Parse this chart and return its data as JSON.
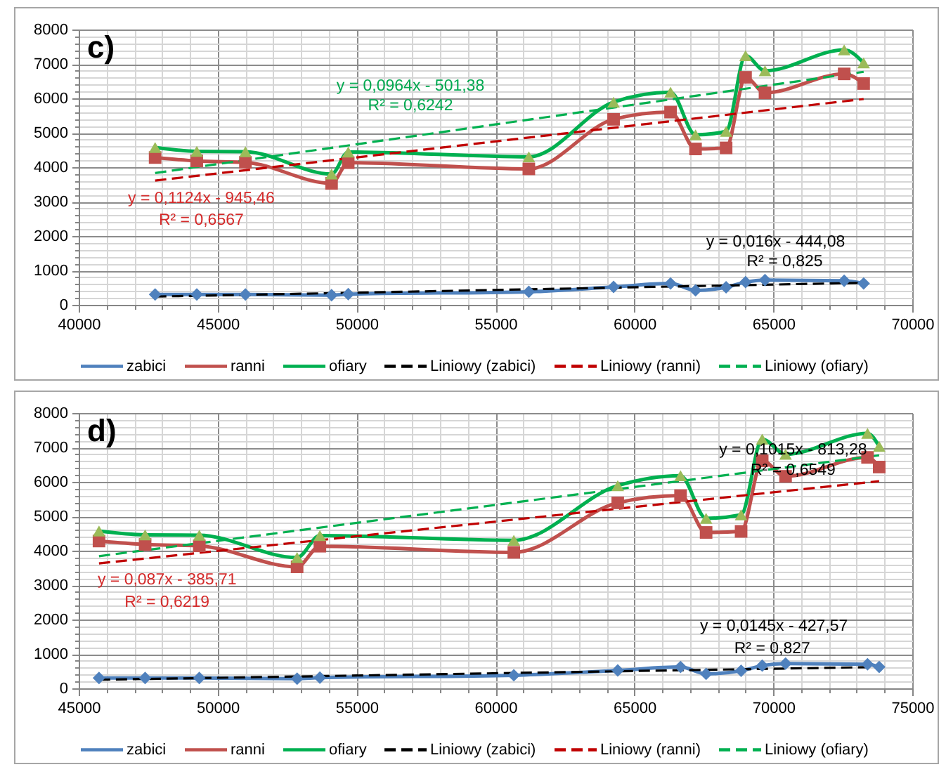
{
  "chart_data": [
    {
      "type": "line",
      "title": "c)",
      "grid": true,
      "legend": "bottom",
      "line_style": "solid",
      "x": [
        42750,
        44250,
        46000,
        49100,
        49700,
        56200,
        59250,
        61300,
        62200,
        63300,
        64000,
        64700,
        67550,
        68250
      ],
      "xlim": [
        40000,
        70000
      ],
      "xticks": [
        40000,
        {
          "value": 41000,
          "label": null
        },
        {
          "value": 42000,
          "label": null
        },
        {
          "value": 43000,
          "label": null
        },
        {
          "value": 44000,
          "label": null
        },
        45000,
        {
          "value": 46000,
          "label": null
        },
        {
          "value": 47000,
          "label": null
        },
        {
          "value": 48000,
          "label": null
        },
        {
          "value": 49000,
          "label": null
        },
        50000,
        {
          "value": 51000,
          "label": null
        },
        {
          "value": 52000,
          "label": null
        },
        {
          "value": 53000,
          "label": null
        },
        {
          "value": 54000,
          "label": null
        },
        55000,
        {
          "value": 56000,
          "label": null
        },
        {
          "value": 57000,
          "label": null
        },
        {
          "value": 58000,
          "label": null
        },
        {
          "value": 59000,
          "label": null
        },
        60000,
        {
          "value": 61000,
          "label": null
        },
        {
          "value": 62000,
          "label": null
        },
        {
          "value": 63000,
          "label": null
        },
        {
          "value": 64000,
          "label": null
        },
        65000,
        {
          "value": 66000,
          "label": null
        },
        {
          "value": 67000,
          "label": null
        },
        {
          "value": 68000,
          "label": null
        },
        {
          "value": 69000,
          "label": null
        },
        70000
      ],
      "ylim": [
        0,
        8000
      ],
      "yticks": [
        0,
        {
          "value": 200,
          "label": null
        },
        {
          "value": 400,
          "label": null
        },
        {
          "value": 600,
          "label": null
        },
        {
          "value": 800,
          "label": null
        },
        1000,
        {
          "value": 1200,
          "label": null
        },
        {
          "value": 1400,
          "label": null
        },
        {
          "value": 1600,
          "label": null
        },
        {
          "value": 1800,
          "label": null
        },
        2000,
        {
          "value": 2200,
          "label": null
        },
        {
          "value": 2400,
          "label": null
        },
        {
          "value": 2600,
          "label": null
        },
        {
          "value": 2800,
          "label": null
        },
        3000,
        {
          "value": 3200,
          "label": null
        },
        {
          "value": 3400,
          "label": null
        },
        {
          "value": 3600,
          "label": null
        },
        {
          "value": 3800,
          "label": null
        },
        4000,
        {
          "value": 4200,
          "label": null
        },
        {
          "value": 4400,
          "label": null
        },
        {
          "value": 4600,
          "label": null
        },
        {
          "value": 4800,
          "label": null
        },
        5000,
        {
          "value": 5200,
          "label": null
        },
        {
          "value": 5400,
          "label": null
        },
        {
          "value": 5600,
          "label": null
        },
        {
          "value": 5800,
          "label": null
        },
        6000,
        {
          "value": 6200,
          "label": null
        },
        {
          "value": 6400,
          "label": null
        },
        {
          "value": 6600,
          "label": null
        },
        {
          "value": 6800,
          "label": null
        },
        7000,
        {
          "value": 7200,
          "label": null
        },
        {
          "value": 7400,
          "label": null
        },
        {
          "value": 7600,
          "label": null
        },
        {
          "value": 7800,
          "label": null
        },
        8000
      ],
      "series": [
        {
          "name": "zabici",
          "color": "#4f81bd",
          "marker": "diamond",
          "values": [
            300,
            300,
            300,
            280,
            310,
            380,
            520,
            620,
            420,
            510,
            660,
            720,
            700,
            620
          ]
        },
        {
          "name": "ranni",
          "color": "#c0504d",
          "marker": "square",
          "values": [
            4280,
            4180,
            4140,
            3530,
            4130,
            3950,
            5390,
            5600,
            4530,
            4560,
            6610,
            6160,
            6710,
            6430
          ]
        },
        {
          "name": "ofiary",
          "color": "#00b050",
          "colors": [
            "#9bbb59",
            "#9bbb59",
            "#9bbb59",
            "#9bbb59",
            "#9bbb59",
            "#9bbb59",
            "#9bbb59",
            "#9bbb59",
            "#9bbb59",
            "#9bbb59",
            "#9bbb59",
            "#9bbb59",
            "#9bbb59",
            "#9bbb59"
          ],
          "marker": "triangle",
          "values": [
            4570,
            4460,
            4450,
            3800,
            4440,
            4300,
            5890,
            6180,
            4940,
            5040,
            7240,
            6800,
            7410,
            7030
          ]
        },
        {
          "name": "Liniowy (zabici)",
          "color": "#000000",
          "line_style": "dashed",
          "x": [
            42750,
            68250
          ],
          "values": [
            240,
            640
          ]
        },
        {
          "name": "Liniowy (ranni)",
          "color": "#c00000",
          "line_style": "dashed",
          "x": [
            42750,
            68250
          ],
          "values": [
            3610,
            5980
          ]
        },
        {
          "name": "Liniowy (ofiary)",
          "color": "#00b050",
          "line_style": "dashed",
          "x": [
            42750,
            68250
          ],
          "values": [
            3830,
            6770
          ]
        }
      ],
      "annotations": [
        "y = 0,0964x - 501,38",
        "R² = 0,6242",
        "y = 0,1124x - 945,46",
        "R² = 0,6567",
        "y = 0,016x - 444,08",
        "R² = 0,825"
      ]
    },
    {
      "type": "line",
      "title": "d)",
      "grid": true,
      "legend": "bottom",
      "line_style": "solid",
      "x": [
        45730,
        47390,
        49340,
        52860,
        53680,
        60660,
        64400,
        66660,
        67580,
        68840,
        69600,
        70440,
        73390,
        73810
      ],
      "xlim": [
        45000,
        75000
      ],
      "xticks": [
        45000,
        {
          "value": 46000,
          "label": null
        },
        {
          "value": 47000,
          "label": null
        },
        {
          "value": 48000,
          "label": null
        },
        {
          "value": 49000,
          "label": null
        },
        50000,
        {
          "value": 51000,
          "label": null
        },
        {
          "value": 52000,
          "label": null
        },
        {
          "value": 53000,
          "label": null
        },
        {
          "value": 54000,
          "label": null
        },
        55000,
        {
          "value": 56000,
          "label": null
        },
        {
          "value": 57000,
          "label": null
        },
        {
          "value": 58000,
          "label": null
        },
        {
          "value": 59000,
          "label": null
        },
        60000,
        {
          "value": 61000,
          "label": null
        },
        {
          "value": 62000,
          "label": null
        },
        {
          "value": 63000,
          "label": null
        },
        {
          "value": 64000,
          "label": null
        },
        65000,
        {
          "value": 66000,
          "label": null
        },
        {
          "value": 67000,
          "label": null
        },
        {
          "value": 68000,
          "label": null
        },
        {
          "value": 69000,
          "label": null
        },
        70000,
        {
          "value": 71000,
          "label": null
        },
        {
          "value": 72000,
          "label": null
        },
        {
          "value": 73000,
          "label": null
        },
        {
          "value": 74000,
          "label": null
        },
        75000
      ],
      "ylim": [
        0,
        8000
      ],
      "yticks": [
        0,
        {
          "value": 200,
          "label": null
        },
        {
          "value": 400,
          "label": null
        },
        {
          "value": 600,
          "label": null
        },
        {
          "value": 800,
          "label": null
        },
        1000,
        {
          "value": 1200,
          "label": null
        },
        {
          "value": 1400,
          "label": null
        },
        {
          "value": 1600,
          "label": null
        },
        {
          "value": 1800,
          "label": null
        },
        2000,
        {
          "value": 2200,
          "label": null
        },
        {
          "value": 2400,
          "label": null
        },
        {
          "value": 2600,
          "label": null
        },
        {
          "value": 2800,
          "label": null
        },
        3000,
        {
          "value": 3200,
          "label": null
        },
        {
          "value": 3400,
          "label": null
        },
        {
          "value": 3600,
          "label": null
        },
        {
          "value": 3800,
          "label": null
        },
        4000,
        {
          "value": 4200,
          "label": null
        },
        {
          "value": 4400,
          "label": null
        },
        {
          "value": 4600,
          "label": null
        },
        {
          "value": 4800,
          "label": null
        },
        5000,
        {
          "value": 5200,
          "label": null
        },
        {
          "value": 5400,
          "label": null
        },
        {
          "value": 5600,
          "label": null
        },
        {
          "value": 5800,
          "label": null
        },
        6000,
        {
          "value": 6200,
          "label": null
        },
        {
          "value": 6400,
          "label": null
        },
        {
          "value": 6600,
          "label": null
        },
        {
          "value": 6800,
          "label": null
        },
        7000,
        {
          "value": 7200,
          "label": null
        },
        {
          "value": 7400,
          "label": null
        },
        {
          "value": 7600,
          "label": null
        },
        {
          "value": 7800,
          "label": null
        },
        8000
      ],
      "series": [
        {
          "name": "zabici",
          "color": "#4f81bd",
          "marker": "diamond",
          "values": [
            300,
            300,
            300,
            280,
            310,
            380,
            520,
            620,
            420,
            510,
            660,
            720,
            700,
            620
          ]
        },
        {
          "name": "ranni",
          "color": "#c0504d",
          "marker": "square",
          "values": [
            4280,
            4180,
            4140,
            3530,
            4130,
            3950,
            5390,
            5600,
            4530,
            4560,
            6610,
            6160,
            6710,
            6430
          ]
        },
        {
          "name": "ofiary",
          "color": "#00b050",
          "colors": [
            "#9bbb59",
            "#9bbb59",
            "#9bbb59",
            "#9bbb59",
            "#9bbb59",
            "#9bbb59",
            "#9bbb59",
            "#9bbb59",
            "#9bbb59",
            "#9bbb59",
            "#9bbb59",
            "#9bbb59",
            "#9bbb59",
            "#9bbb59"
          ],
          "marker": "triangle",
          "values": [
            4570,
            4460,
            4450,
            3800,
            4440,
            4300,
            5890,
            6180,
            4940,
            5040,
            7240,
            6800,
            7410,
            7030
          ]
        },
        {
          "name": "Liniowy (zabici)",
          "color": "#000000",
          "line_style": "dashed",
          "x": [
            45730,
            73810
          ],
          "values": [
            250,
            620
          ]
        },
        {
          "name": "Liniowy (ranni)",
          "color": "#c00000",
          "line_style": "dashed",
          "x": [
            45730,
            73810
          ],
          "values": [
            3630,
            6020
          ]
        },
        {
          "name": "Liniowy (ofiary)",
          "color": "#00b050",
          "line_style": "dashed",
          "x": [
            45730,
            73810
          ],
          "values": [
            3840,
            6770
          ]
        }
      ],
      "annotations": [
        "y = 0,1015x - 813,28",
        "R² = 0,6549",
        "y = 0,087x - 385,71",
        "R² = 0,6219",
        "y = 0,0145x - 427,57",
        "R² = 0,827"
      ]
    }
  ]
}
